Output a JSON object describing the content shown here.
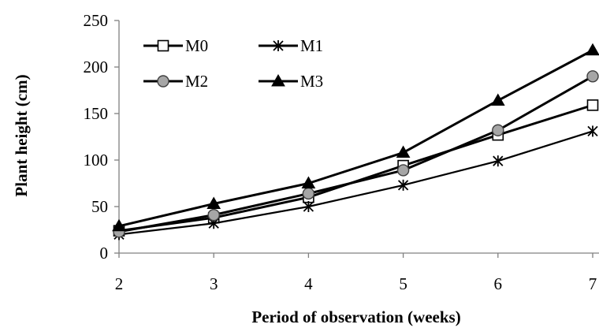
{
  "chart_data": {
    "type": "line",
    "title": "",
    "xlabel": "Period of observation (weeks)",
    "ylabel": "Plant height (cm)",
    "x": [
      2,
      3,
      4,
      5,
      6,
      7
    ],
    "xlim": [
      2,
      7
    ],
    "ylim": [
      0,
      250
    ],
    "yticks": [
      0,
      50,
      100,
      150,
      200,
      250
    ],
    "xticks": [
      2,
      3,
      4,
      5,
      6,
      7
    ],
    "grid": false,
    "legend_position": "top-left",
    "series": [
      {
        "name": "M0",
        "marker": "square-open",
        "color": "#000000",
        "values": [
          24,
          38,
          60,
          94,
          127,
          159
        ]
      },
      {
        "name": "M1",
        "marker": "star",
        "color": "#000000",
        "values": [
          20,
          32,
          50,
          73,
          99,
          131
        ]
      },
      {
        "name": "M2",
        "marker": "circle-gray",
        "color": "#000000",
        "marker_fill": "#a6a6a6",
        "values": [
          23,
          41,
          64,
          89,
          132,
          190
        ]
      },
      {
        "name": "M3",
        "marker": "triangle-filled",
        "color": "#000000",
        "values": [
          29,
          53,
          75,
          108,
          164,
          218
        ]
      }
    ]
  }
}
